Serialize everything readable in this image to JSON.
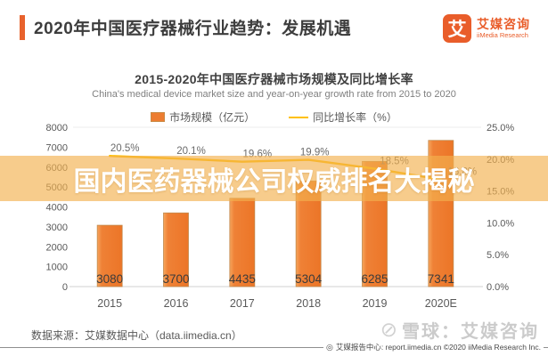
{
  "header": {
    "title": "2020年中国医疗器械行业趋势：发展机遇",
    "accent_color": "#E8622D"
  },
  "logo": {
    "mark": "艾",
    "name_cn": "艾媒咨询",
    "name_en": "iiMedia Research",
    "color": "#E95D2A"
  },
  "chart": {
    "title": "2015-2020年中国医疗器械市场规模及同比增长率",
    "subtitle": "China's medical device market size and year-on-year growth rate from 2015 to 2020",
    "legend": [
      {
        "label": "市场规模（亿元）",
        "color": "#ED7D31",
        "type": "bar"
      },
      {
        "label": "同比增长率（%）",
        "color": "#FFC000",
        "type": "line"
      }
    ]
  },
  "chart_data": {
    "type": "bar",
    "categories": [
      "2015",
      "2016",
      "2017",
      "2018",
      "2019",
      "2020E"
    ],
    "series": [
      {
        "name": "市场规模（亿元）",
        "type": "bar",
        "values": [
          3080,
          3700,
          4435,
          5304,
          6285,
          7341
        ],
        "color": "#ED7D31"
      },
      {
        "name": "同比增长率（%）",
        "type": "line",
        "values": [
          20.5,
          20.1,
          19.6,
          19.9,
          18.5,
          16.8
        ],
        "labels": [
          "20.5%",
          "20.1%",
          "19.6%",
          "19.9%",
          "18.5%",
          "16.8%"
        ],
        "color": "#FFC000"
      }
    ],
    "left_axis": {
      "title": "市场规模（亿元）",
      "min": 0,
      "max": 8000,
      "ticks": [
        "8000",
        "7000",
        "6000",
        "5000",
        "4000",
        "3000",
        "2000",
        "1000",
        "0"
      ]
    },
    "right_axis": {
      "title": "同比增长率（%）",
      "min": 0,
      "max": 25,
      "ticks": [
        "25.0%",
        "20.0%",
        "15.0%",
        "10.0%",
        "5.0%",
        "0.0%"
      ]
    },
    "grid": "baseline and top line only",
    "legend_position": "top-center"
  },
  "overlay": {
    "text": "国内医药器械公司权威排名大揭秘",
    "bg_color": "#F2B14E",
    "text_color": "#FFFFFF"
  },
  "footer": {
    "source": "数据来源：艾媒数据中心（data.iimedia.cn）",
    "watermark": "雪球：艾媒咨询",
    "report_line": "艾媒报告中心: report.iimedia.cn ©2020 iiMedia Research Inc."
  }
}
